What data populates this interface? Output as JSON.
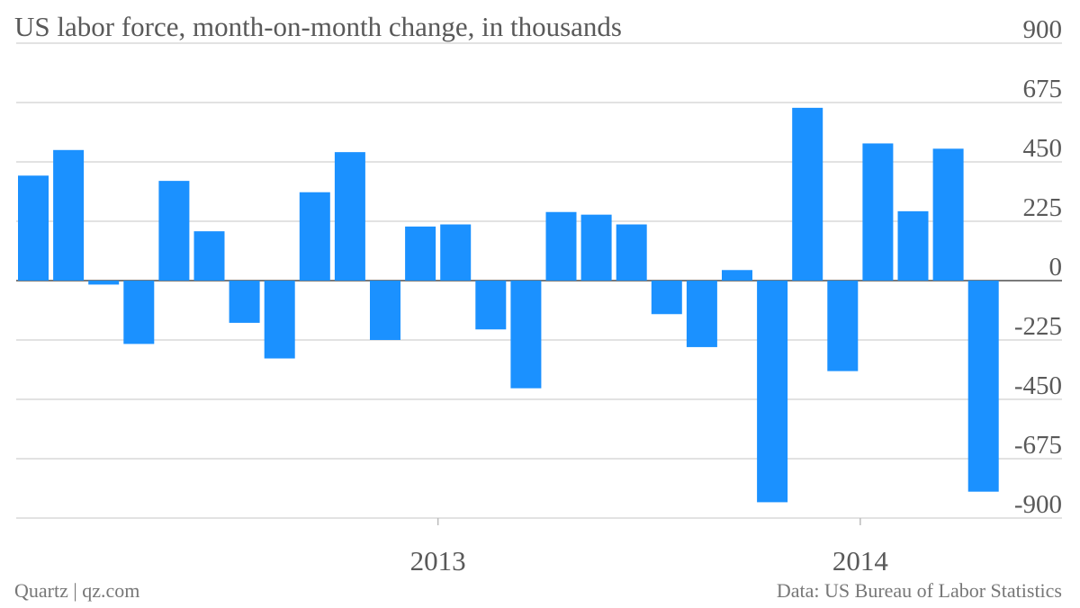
{
  "header": {
    "title": "US labor force, month-on-month change, in thousands"
  },
  "footer": {
    "source_left": "Quartz | qz.com",
    "source_right": "Data: US Bureau of Labor Statistics"
  },
  "chart_data": {
    "type": "bar",
    "title": "US labor force, month-on-month change, in thousands",
    "xlabel": "",
    "ylabel": "",
    "ylim": [
      -900,
      900
    ],
    "yticks": [
      900,
      675,
      450,
      225,
      0,
      -225,
      -450,
      -675,
      -900
    ],
    "ytick_labels": [
      "900",
      "675",
      "450",
      "225",
      "0",
      "-225",
      "-450",
      "-675",
      "-900"
    ],
    "x_tick_labels": [
      {
        "label": "2013",
        "after_index": 11
      },
      {
        "label": "2014",
        "after_index": 23
      }
    ],
    "values": [
      398,
      495,
      -15,
      -240,
      378,
      187,
      -160,
      -295,
      335,
      487,
      -225,
      205,
      213,
      -185,
      -408,
      260,
      250,
      213,
      -127,
      -252,
      40,
      -840,
      655,
      -343,
      520,
      263,
      500,
      -800
    ],
    "bar_color": "#1b91ff",
    "grid": true
  }
}
